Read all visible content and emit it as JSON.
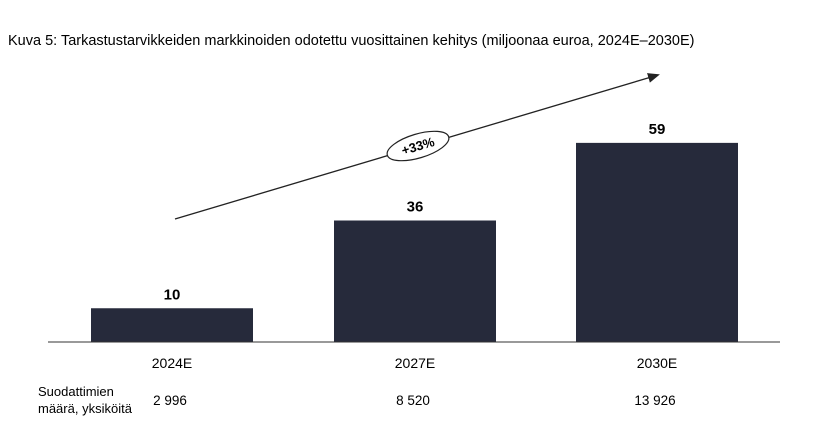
{
  "chart_data": {
    "type": "bar",
    "title": "Kuva 5: Tarkastustarvikkeiden markkinoiden odotettu vuosittainen kehitys (miljoonaa euroa, 2024E–2030E)",
    "categories": [
      "2024E",
      "2027E",
      "2030E"
    ],
    "values": [
      10,
      36,
      59
    ],
    "data_labels": [
      "10",
      "36",
      "59"
    ],
    "ylim": [
      0,
      70
    ],
    "grid": false,
    "legend": "none",
    "annotation": "+33%",
    "bar_color": "#262a3b",
    "table_row": {
      "label_line1": "Suodattimien",
      "label_line2": "määrä, yksiköitä",
      "values": [
        "2 996",
        "8 520",
        "13 926"
      ]
    }
  }
}
